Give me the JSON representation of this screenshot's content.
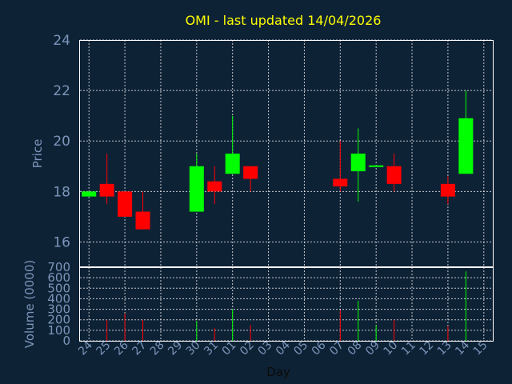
{
  "title": "OMI - last updated 14/04/2026",
  "colors": {
    "background": "#0e2236",
    "up": "#00ff00",
    "down": "#ff0000",
    "title": "#ffff00",
    "axis_text": "#7b96b9",
    "grid": "#ffffff",
    "flat": "#00ff00"
  },
  "chart_data": [
    {
      "type": "candlestick",
      "ylabel": "Price",
      "ylim": [
        15,
        24
      ],
      "yticks": [
        16,
        18,
        20,
        22,
        24
      ],
      "grid": true,
      "x_count": 23,
      "candles": [
        {
          "x": 0,
          "open": 17.8,
          "high": 18.0,
          "low": 17.8,
          "close": 18.0
        },
        {
          "x": 1,
          "open": 18.3,
          "high": 19.5,
          "low": 17.5,
          "close": 17.8
        },
        {
          "x": 2,
          "open": 18.0,
          "high": 18.0,
          "low": 17.0,
          "close": 17.0
        },
        {
          "x": 3,
          "open": 17.2,
          "high": 18.0,
          "low": 16.5,
          "close": 16.5
        },
        {
          "x": 6,
          "open": 17.2,
          "high": 19.5,
          "low": 17.2,
          "close": 19.0
        },
        {
          "x": 7,
          "open": 18.4,
          "high": 19.0,
          "low": 17.5,
          "close": 18.0
        },
        {
          "x": 8,
          "open": 18.7,
          "high": 21.0,
          "low": 18.7,
          "close": 19.5
        },
        {
          "x": 9,
          "open": 19.0,
          "high": 19.0,
          "low": 18.0,
          "close": 18.5
        },
        {
          "x": 14,
          "open": 18.5,
          "high": 20.0,
          "low": 18.0,
          "close": 18.2
        },
        {
          "x": 15,
          "open": 18.8,
          "high": 20.5,
          "low": 17.6,
          "close": 19.5
        },
        {
          "x": 16,
          "open": 19.0,
          "high": 19.0,
          "low": 19.0,
          "close": 19.0
        },
        {
          "x": 17,
          "open": 19.0,
          "high": 19.5,
          "low": 18.0,
          "close": 18.3
        },
        {
          "x": 20,
          "open": 18.3,
          "high": 18.6,
          "low": 17.5,
          "close": 17.8
        },
        {
          "x": 21,
          "open": 18.7,
          "high": 22.0,
          "low": 18.7,
          "close": 20.9
        }
      ]
    },
    {
      "type": "bar",
      "ylabel": "Volume (0000)",
      "xlabel": "Day",
      "ylim": [
        0,
        700
      ],
      "yticks": [
        0,
        100,
        200,
        300,
        400,
        500,
        600,
        700
      ],
      "grid": true,
      "categories": [
        "24",
        "25",
        "26",
        "27",
        "28",
        "29",
        "30",
        "31",
        "01",
        "02",
        "03",
        "04",
        "05",
        "06",
        "07",
        "08",
        "09",
        "10",
        "11",
        "12",
        "13",
        "14",
        "15"
      ],
      "volumes": [
        {
          "x": 1,
          "value": 200,
          "direction": "down"
        },
        {
          "x": 2,
          "value": 260,
          "direction": "down"
        },
        {
          "x": 3,
          "value": 200,
          "direction": "down"
        },
        {
          "x": 6,
          "value": 190,
          "direction": "up"
        },
        {
          "x": 7,
          "value": 120,
          "direction": "down"
        },
        {
          "x": 8,
          "value": 300,
          "direction": "up"
        },
        {
          "x": 9,
          "value": 150,
          "direction": "down"
        },
        {
          "x": 14,
          "value": 290,
          "direction": "down"
        },
        {
          "x": 15,
          "value": 380,
          "direction": "up"
        },
        {
          "x": 16,
          "value": 150,
          "direction": "up"
        },
        {
          "x": 17,
          "value": 200,
          "direction": "down"
        },
        {
          "x": 20,
          "value": 140,
          "direction": "down"
        },
        {
          "x": 21,
          "value": 660,
          "direction": "up"
        }
      ]
    }
  ]
}
